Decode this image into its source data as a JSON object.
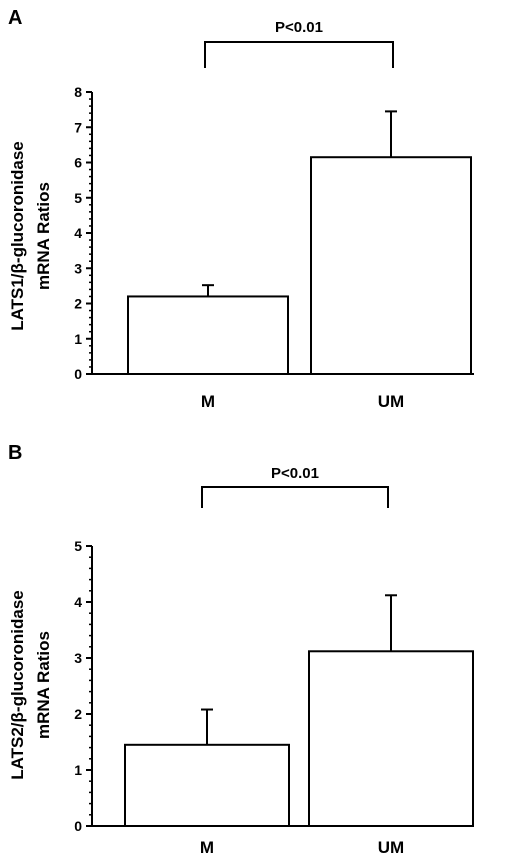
{
  "chart_data": [
    {
      "type": "bar",
      "panel": "A",
      "categories": [
        "M",
        "UM"
      ],
      "values": [
        2.2,
        6.15
      ],
      "error_bars": [
        0.32,
        1.3
      ],
      "ylabel_line1": "LATS1/β-glucoronidase",
      "ylabel_line2": "mRNA Ratios",
      "ylim": [
        0,
        8
      ],
      "yticks": [
        "0",
        "1",
        "2",
        "3",
        "4",
        "5",
        "6",
        "7",
        "8"
      ],
      "significance": "P<0.01",
      "grid": false
    },
    {
      "type": "bar",
      "panel": "B",
      "categories": [
        "M",
        "UM"
      ],
      "values": [
        1.45,
        3.12
      ],
      "error_bars": [
        0.63,
        1.0
      ],
      "ylabel_line1": "LATS2/β-glucoronidase",
      "ylabel_line2": "mRNA Ratios",
      "ylim": [
        0,
        5
      ],
      "yticks": [
        "0",
        "1",
        "2",
        "3",
        "4",
        "5"
      ],
      "significance": "P<0.01",
      "grid": false
    }
  ]
}
